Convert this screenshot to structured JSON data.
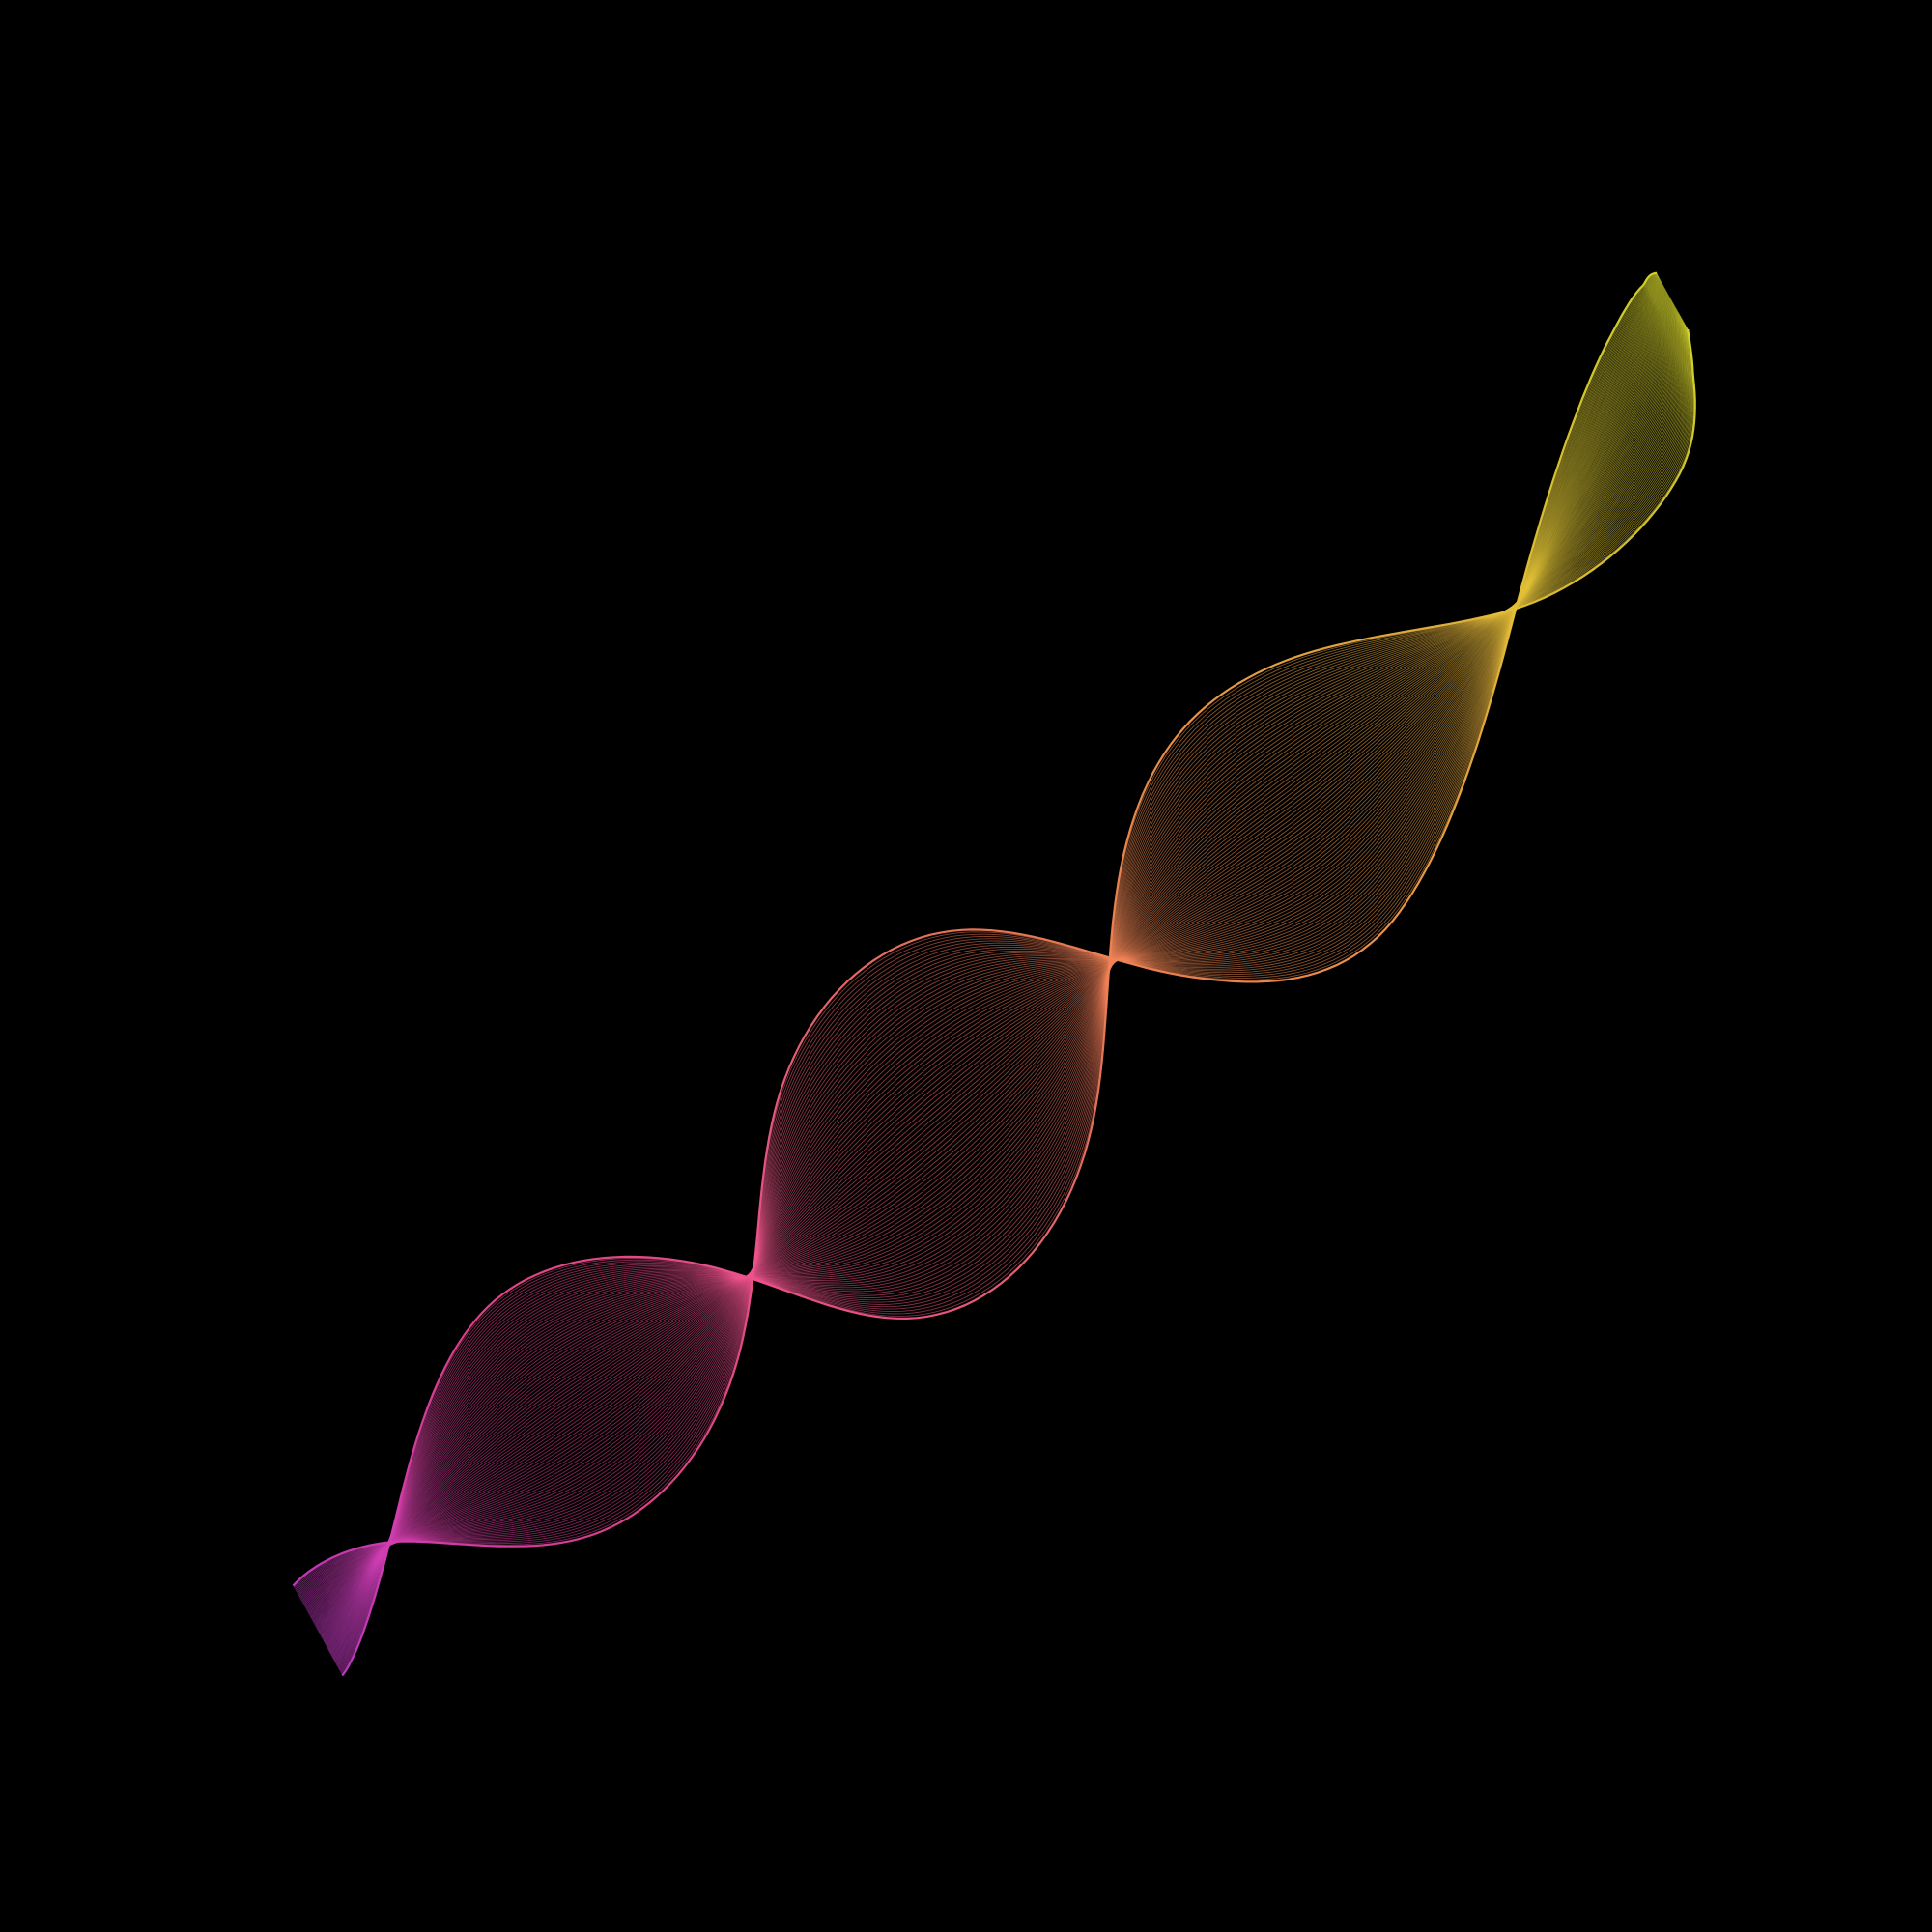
{
  "artwork": {
    "subject": "flowing-wave-ribbon",
    "background_color": "#000000",
    "gradient_stops": [
      "#c63bc4",
      "#e8438f",
      "#f0578a",
      "#f07a5a",
      "#f59a4a",
      "#e3c037",
      "#d8d92c"
    ],
    "ribbon_lines": 90,
    "line_opacity": 0.55
  }
}
